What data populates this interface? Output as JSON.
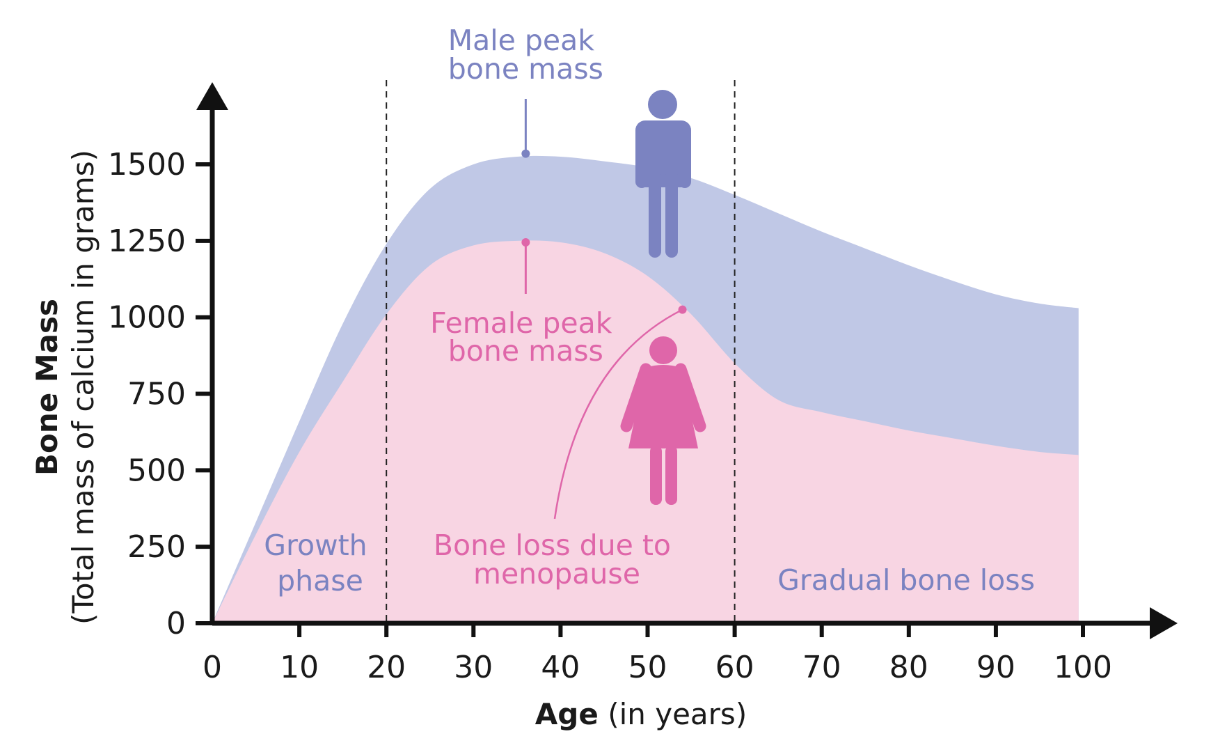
{
  "colors": {
    "male": "#7b83c1",
    "male_fill": "#c0c8e6",
    "female": "#df66a9",
    "female_fill": "#f8d5e3",
    "axis": "#111111"
  },
  "icons": {
    "male": "male-figure-icon",
    "female": "female-figure-icon"
  },
  "chart_data": {
    "type": "area",
    "xlabel_bold": "Age",
    "xlabel_rest": " (in years)",
    "ylabel_bold": "Bone Mass",
    "ylabel_rest": "(Total mass of calcium in grams)",
    "xlim": [
      0,
      100
    ],
    "ylim": [
      0,
      1500
    ],
    "x_ticks": [
      0,
      10,
      20,
      30,
      40,
      50,
      60,
      70,
      80,
      90,
      100
    ],
    "y_ticks": [
      0,
      250,
      500,
      750,
      1000,
      1250,
      1500
    ],
    "grid": false,
    "vlines": [
      20,
      60
    ],
    "series": [
      {
        "name": "Male",
        "x": [
          0,
          5,
          10,
          15,
          20,
          25,
          30,
          35,
          40,
          45,
          50,
          55,
          60,
          65,
          70,
          75,
          80,
          85,
          90,
          95,
          99.5
        ],
        "y": [
          0,
          330,
          660,
          980,
          1240,
          1420,
          1500,
          1525,
          1525,
          1510,
          1490,
          1455,
          1400,
          1340,
          1280,
          1225,
          1170,
          1120,
          1075,
          1045,
          1030
        ]
      },
      {
        "name": "Female",
        "x": [
          0,
          5,
          10,
          15,
          20,
          25,
          30,
          35,
          40,
          45,
          50,
          55,
          60,
          65,
          70,
          75,
          80,
          85,
          90,
          95,
          99.5
        ],
        "y": [
          0,
          290,
          560,
          790,
          1010,
          1170,
          1235,
          1250,
          1245,
          1210,
          1135,
          1010,
          850,
          730,
          690,
          660,
          630,
          605,
          580,
          560,
          550
        ]
      }
    ],
    "annotations": {
      "male_peak": {
        "line1": "Male peak",
        "line2": "bone mass",
        "x": 36,
        "y": 1535
      },
      "female_peak": {
        "line1": "Female peak",
        "line2": "bone mass",
        "x": 36,
        "y": 1245
      },
      "menopause": {
        "line1": "Bone loss due to",
        "line2": "menopause",
        "x": 54,
        "y": 1025
      },
      "growth": {
        "line1": "Growth",
        "line2": "phase"
      },
      "gradual": {
        "line1": "Gradual bone loss"
      }
    }
  }
}
